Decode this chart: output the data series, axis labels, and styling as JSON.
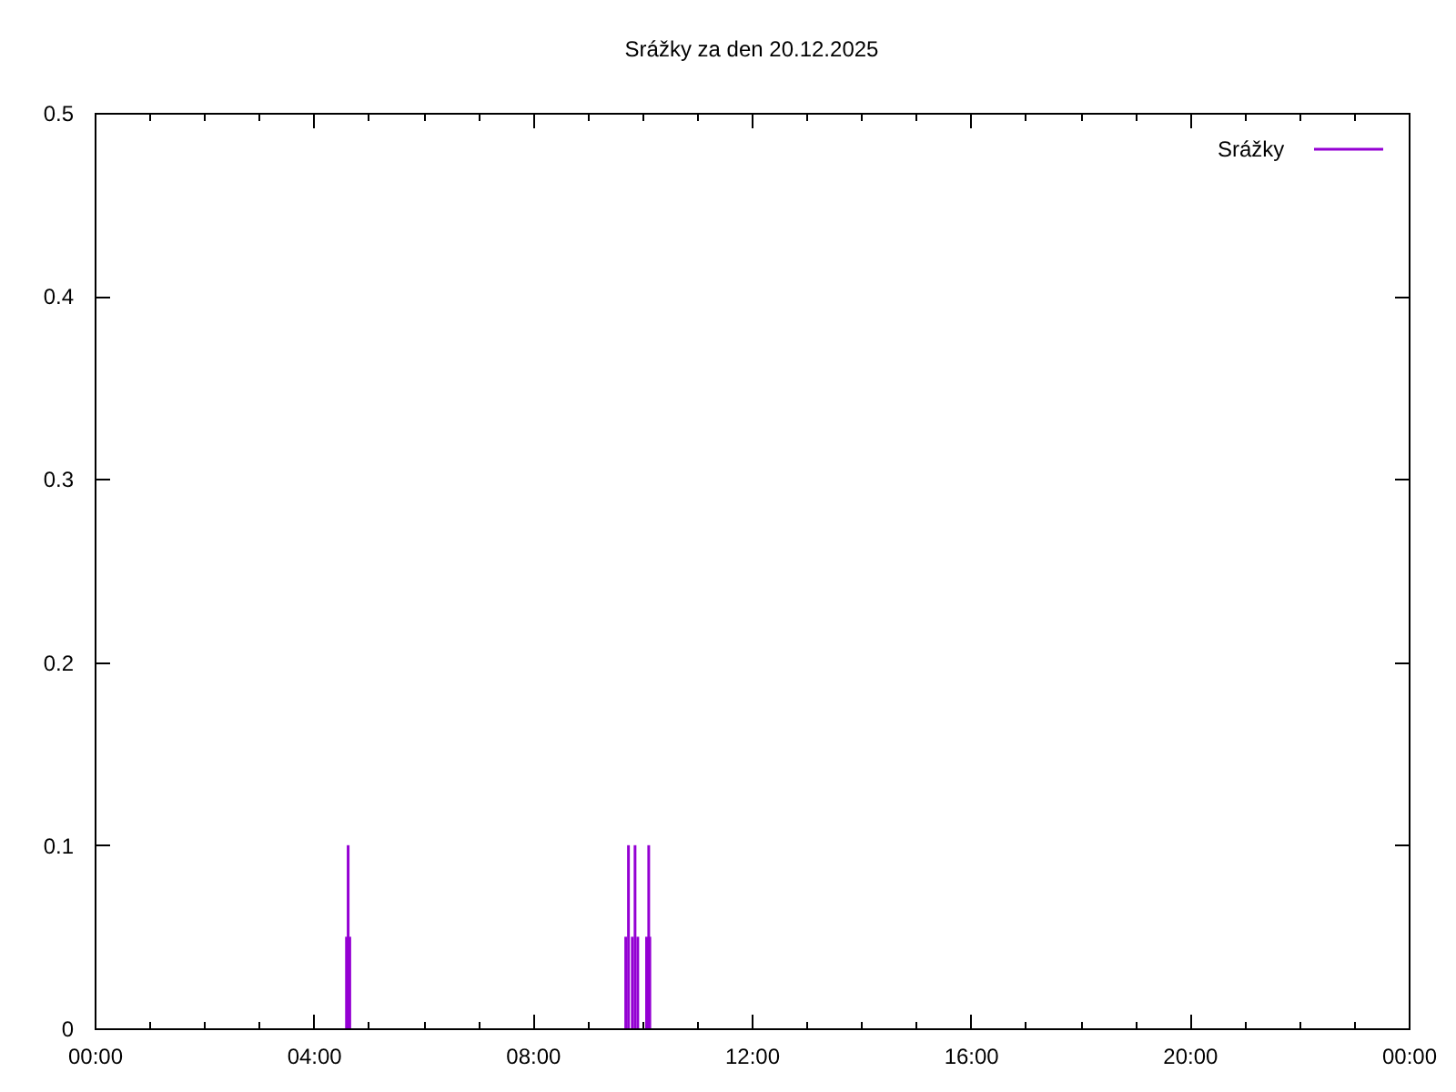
{
  "chart_data": {
    "type": "bar",
    "title": "Srážky za den 20.12.2025",
    "x": [
      4.6,
      4.63,
      4.66,
      9.7,
      9.75,
      9.82,
      9.87,
      9.92,
      10.08,
      10.12,
      10.14
    ],
    "series": [
      {
        "name": "Srážky",
        "color": "#9400d3",
        "values": [
          0.05,
          0.1,
          0.05,
          0.05,
          0.1,
          0.05,
          0.1,
          0.05,
          0.05,
          0.1,
          0.05
        ]
      }
    ],
    "xlim": [
      0,
      24
    ],
    "xticks": [
      {
        "value": 0,
        "label": "00:00"
      },
      {
        "value": 1,
        "label": null
      },
      {
        "value": 2,
        "label": null
      },
      {
        "value": 3,
        "label": null
      },
      {
        "value": 4,
        "label": "04:00"
      },
      {
        "value": 5,
        "label": null
      },
      {
        "value": 6,
        "label": null
      },
      {
        "value": 7,
        "label": null
      },
      {
        "value": 8,
        "label": "08:00"
      },
      {
        "value": 9,
        "label": null
      },
      {
        "value": 10,
        "label": null
      },
      {
        "value": 11,
        "label": null
      },
      {
        "value": 12,
        "label": "12:00"
      },
      {
        "value": 13,
        "label": null
      },
      {
        "value": 14,
        "label": null
      },
      {
        "value": 15,
        "label": null
      },
      {
        "value": 16,
        "label": "16:00"
      },
      {
        "value": 17,
        "label": null
      },
      {
        "value": 18,
        "label": null
      },
      {
        "value": 19,
        "label": null
      },
      {
        "value": 20,
        "label": "20:00"
      },
      {
        "value": 21,
        "label": null
      },
      {
        "value": 22,
        "label": null
      },
      {
        "value": 23,
        "label": null
      },
      {
        "value": 24,
        "label": "00:00"
      }
    ],
    "ylim": [
      0,
      0.5
    ],
    "yticks": [
      0,
      0.1,
      0.2,
      0.3,
      0.4,
      0.5
    ],
    "grid": false,
    "legend": "top right"
  }
}
